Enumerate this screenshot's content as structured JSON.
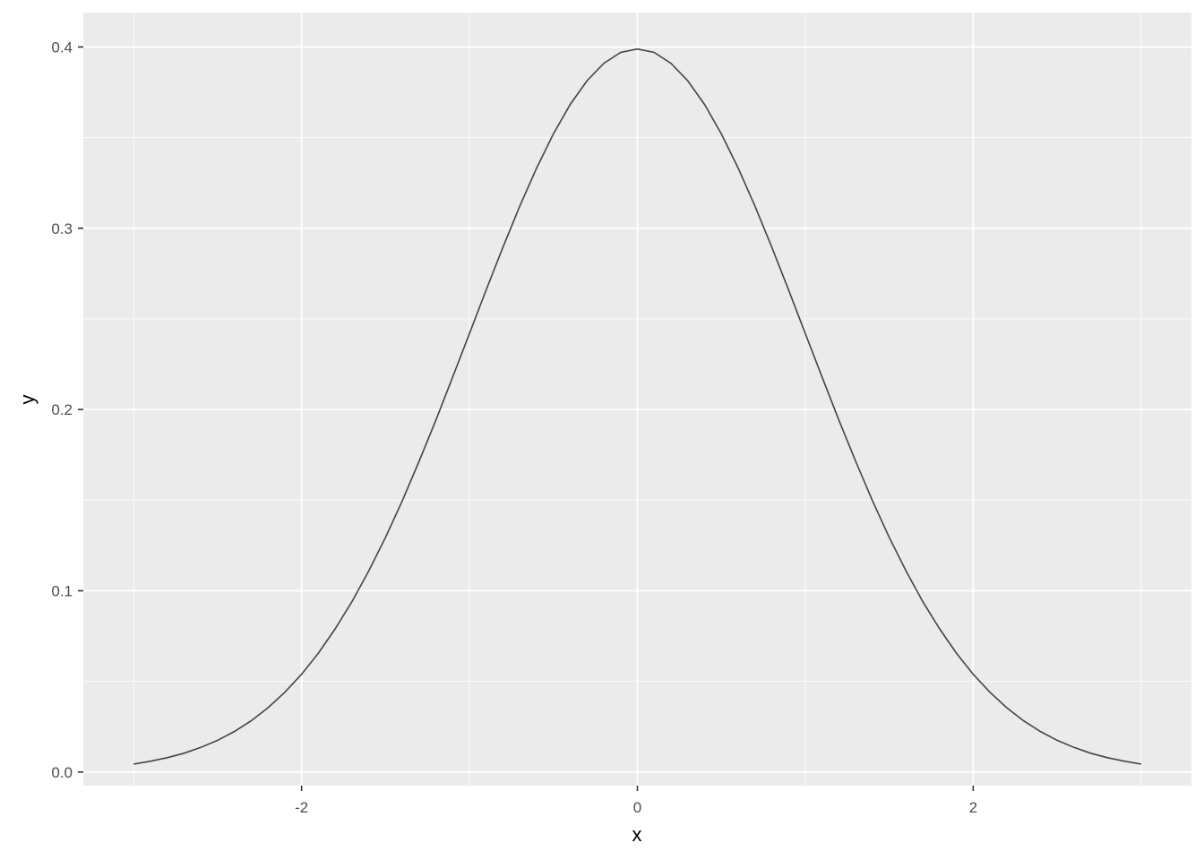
{
  "chart_data": {
    "type": "line",
    "title": "",
    "xlabel": "x",
    "ylabel": "y",
    "xlim": [
      -3.3,
      3.3
    ],
    "ylim": [
      -0.0075,
      0.419
    ],
    "x_ticks": [
      -2,
      0,
      2
    ],
    "x_tick_labels": [
      "-2",
      "0",
      "2"
    ],
    "x_minor_ticks": [
      -3,
      -1,
      1,
      3
    ],
    "y_ticks": [
      0.0,
      0.1,
      0.2,
      0.3,
      0.4
    ],
    "y_tick_labels": [
      "0.0",
      "0.1",
      "0.2",
      "0.3",
      "0.4"
    ],
    "y_minor_ticks": [
      0.05,
      0.15,
      0.25,
      0.35
    ],
    "grid": true,
    "colors": {
      "panel": "#ebebeb",
      "grid": "#ffffff",
      "line": "#444444"
    },
    "series": [
      {
        "x": [
          -3.0,
          -2.9,
          -2.8,
          -2.7,
          -2.6,
          -2.5,
          -2.4,
          -2.3,
          -2.2,
          -2.1,
          -2.0,
          -1.9,
          -1.8,
          -1.7,
          -1.6,
          -1.5,
          -1.4,
          -1.3,
          -1.2,
          -1.1,
          -1.0,
          -0.9,
          -0.8,
          -0.7,
          -0.6,
          -0.5,
          -0.4,
          -0.3,
          -0.2,
          -0.1,
          0.0,
          0.1,
          0.2,
          0.3,
          0.4,
          0.5,
          0.6,
          0.7,
          0.8,
          0.9,
          1.0,
          1.1,
          1.2,
          1.3,
          1.4,
          1.5,
          1.6,
          1.7,
          1.8,
          1.9,
          2.0,
          2.1,
          2.2,
          2.3,
          2.4,
          2.5,
          2.6,
          2.7,
          2.8,
          2.9,
          3.0
        ],
        "y": [
          0.0044,
          0.006,
          0.0079,
          0.0104,
          0.0136,
          0.0175,
          0.0224,
          0.0283,
          0.0355,
          0.044,
          0.054,
          0.0656,
          0.079,
          0.094,
          0.1109,
          0.1295,
          0.1497,
          0.1714,
          0.1942,
          0.2179,
          0.242,
          0.2661,
          0.2897,
          0.3123,
          0.3332,
          0.3521,
          0.3683,
          0.3814,
          0.391,
          0.397,
          0.3989,
          0.397,
          0.391,
          0.3814,
          0.3683,
          0.3521,
          0.3332,
          0.3123,
          0.2897,
          0.2661,
          0.242,
          0.2179,
          0.1942,
          0.1714,
          0.1497,
          0.1295,
          0.1109,
          0.094,
          0.079,
          0.0656,
          0.054,
          0.044,
          0.0355,
          0.0283,
          0.0224,
          0.0175,
          0.0136,
          0.0104,
          0.0079,
          0.006,
          0.0044
        ]
      }
    ]
  }
}
